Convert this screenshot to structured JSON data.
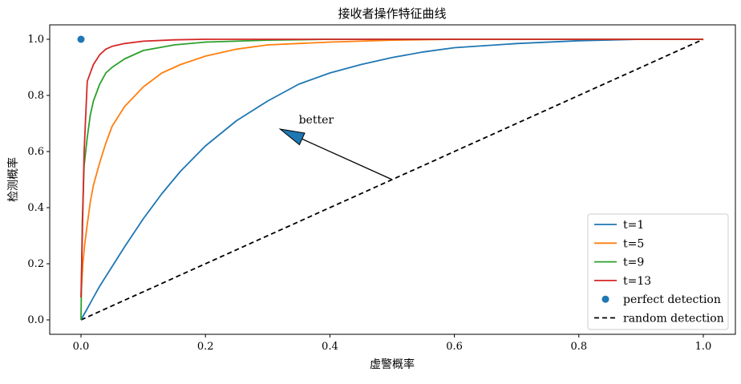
{
  "chart_data": {
    "type": "line",
    "title": "接收者操作特征曲线",
    "xlabel": "虚警概率",
    "ylabel": "检测概率",
    "xlim": [
      -0.04,
      1.05
    ],
    "ylim": [
      -0.05,
      1.05
    ],
    "xticks": [
      "0.0",
      "0.2",
      "0.4",
      "0.6",
      "0.8",
      "1.0"
    ],
    "yticks": [
      "0.0",
      "0.2",
      "0.4",
      "0.6",
      "0.8",
      "1.0"
    ],
    "grid": false,
    "legend_position": "bottom-right",
    "series": [
      {
        "name": "t=1",
        "color": "#1f77b4",
        "x": [
          0,
          0.01,
          0.02,
          0.03,
          0.05,
          0.07,
          0.1,
          0.13,
          0.16,
          0.2,
          0.25,
          0.3,
          0.35,
          0.4,
          0.45,
          0.5,
          0.55,
          0.6,
          0.7,
          0.8,
          0.9,
          1.0
        ],
        "y": [
          0.0,
          0.04,
          0.08,
          0.12,
          0.19,
          0.26,
          0.36,
          0.45,
          0.53,
          0.62,
          0.71,
          0.78,
          0.84,
          0.88,
          0.91,
          0.935,
          0.955,
          0.97,
          0.985,
          0.995,
          1.0,
          1.0
        ]
      },
      {
        "name": "t=5",
        "color": "#ff7f0e",
        "x": [
          0,
          0.003,
          0.006,
          0.01,
          0.015,
          0.02,
          0.03,
          0.04,
          0.05,
          0.07,
          0.1,
          0.13,
          0.16,
          0.2,
          0.25,
          0.3,
          0.4,
          0.5,
          0.6,
          0.8,
          1.0
        ],
        "y": [
          0.08,
          0.2,
          0.27,
          0.34,
          0.42,
          0.48,
          0.56,
          0.63,
          0.69,
          0.76,
          0.83,
          0.88,
          0.91,
          0.94,
          0.965,
          0.98,
          0.99,
          0.997,
          1.0,
          1.0,
          1.0
        ]
      },
      {
        "name": "t=9",
        "color": "#2ca02c",
        "x": [
          0,
          0.002,
          0.005,
          0.01,
          0.015,
          0.02,
          0.03,
          0.04,
          0.05,
          0.07,
          0.1,
          0.15,
          0.2,
          0.3,
          0.4,
          0.6,
          0.8,
          1.0
        ],
        "y": [
          0.0,
          0.35,
          0.55,
          0.65,
          0.73,
          0.78,
          0.84,
          0.88,
          0.9,
          0.93,
          0.96,
          0.98,
          0.99,
          0.997,
          1.0,
          1.0,
          1.0,
          1.0
        ]
      },
      {
        "name": "t=13",
        "color": "#d62728",
        "x": [
          0,
          0.005,
          0.01,
          0.015,
          0.02,
          0.03,
          0.04,
          0.05,
          0.07,
          0.1,
          0.15,
          0.2,
          0.3,
          0.5,
          0.8,
          1.0
        ],
        "y": [
          0.08,
          0.6,
          0.85,
          0.88,
          0.91,
          0.945,
          0.965,
          0.975,
          0.985,
          0.993,
          0.998,
          1.0,
          1.0,
          1.0,
          1.0,
          1.0
        ]
      }
    ],
    "perfect_point": {
      "name": "perfect detection",
      "x": 0,
      "y": 1,
      "color": "#1f77b4"
    },
    "random_line": {
      "name": "random detection",
      "x": [
        0,
        1
      ],
      "y": [
        0,
        1
      ],
      "color": "#000000"
    },
    "annotation": {
      "text": "better",
      "from": [
        0.5,
        0.5
      ],
      "to": [
        0.32,
        0.68
      ],
      "text_at": [
        0.35,
        0.7
      ],
      "color": "#1f77b4"
    }
  }
}
